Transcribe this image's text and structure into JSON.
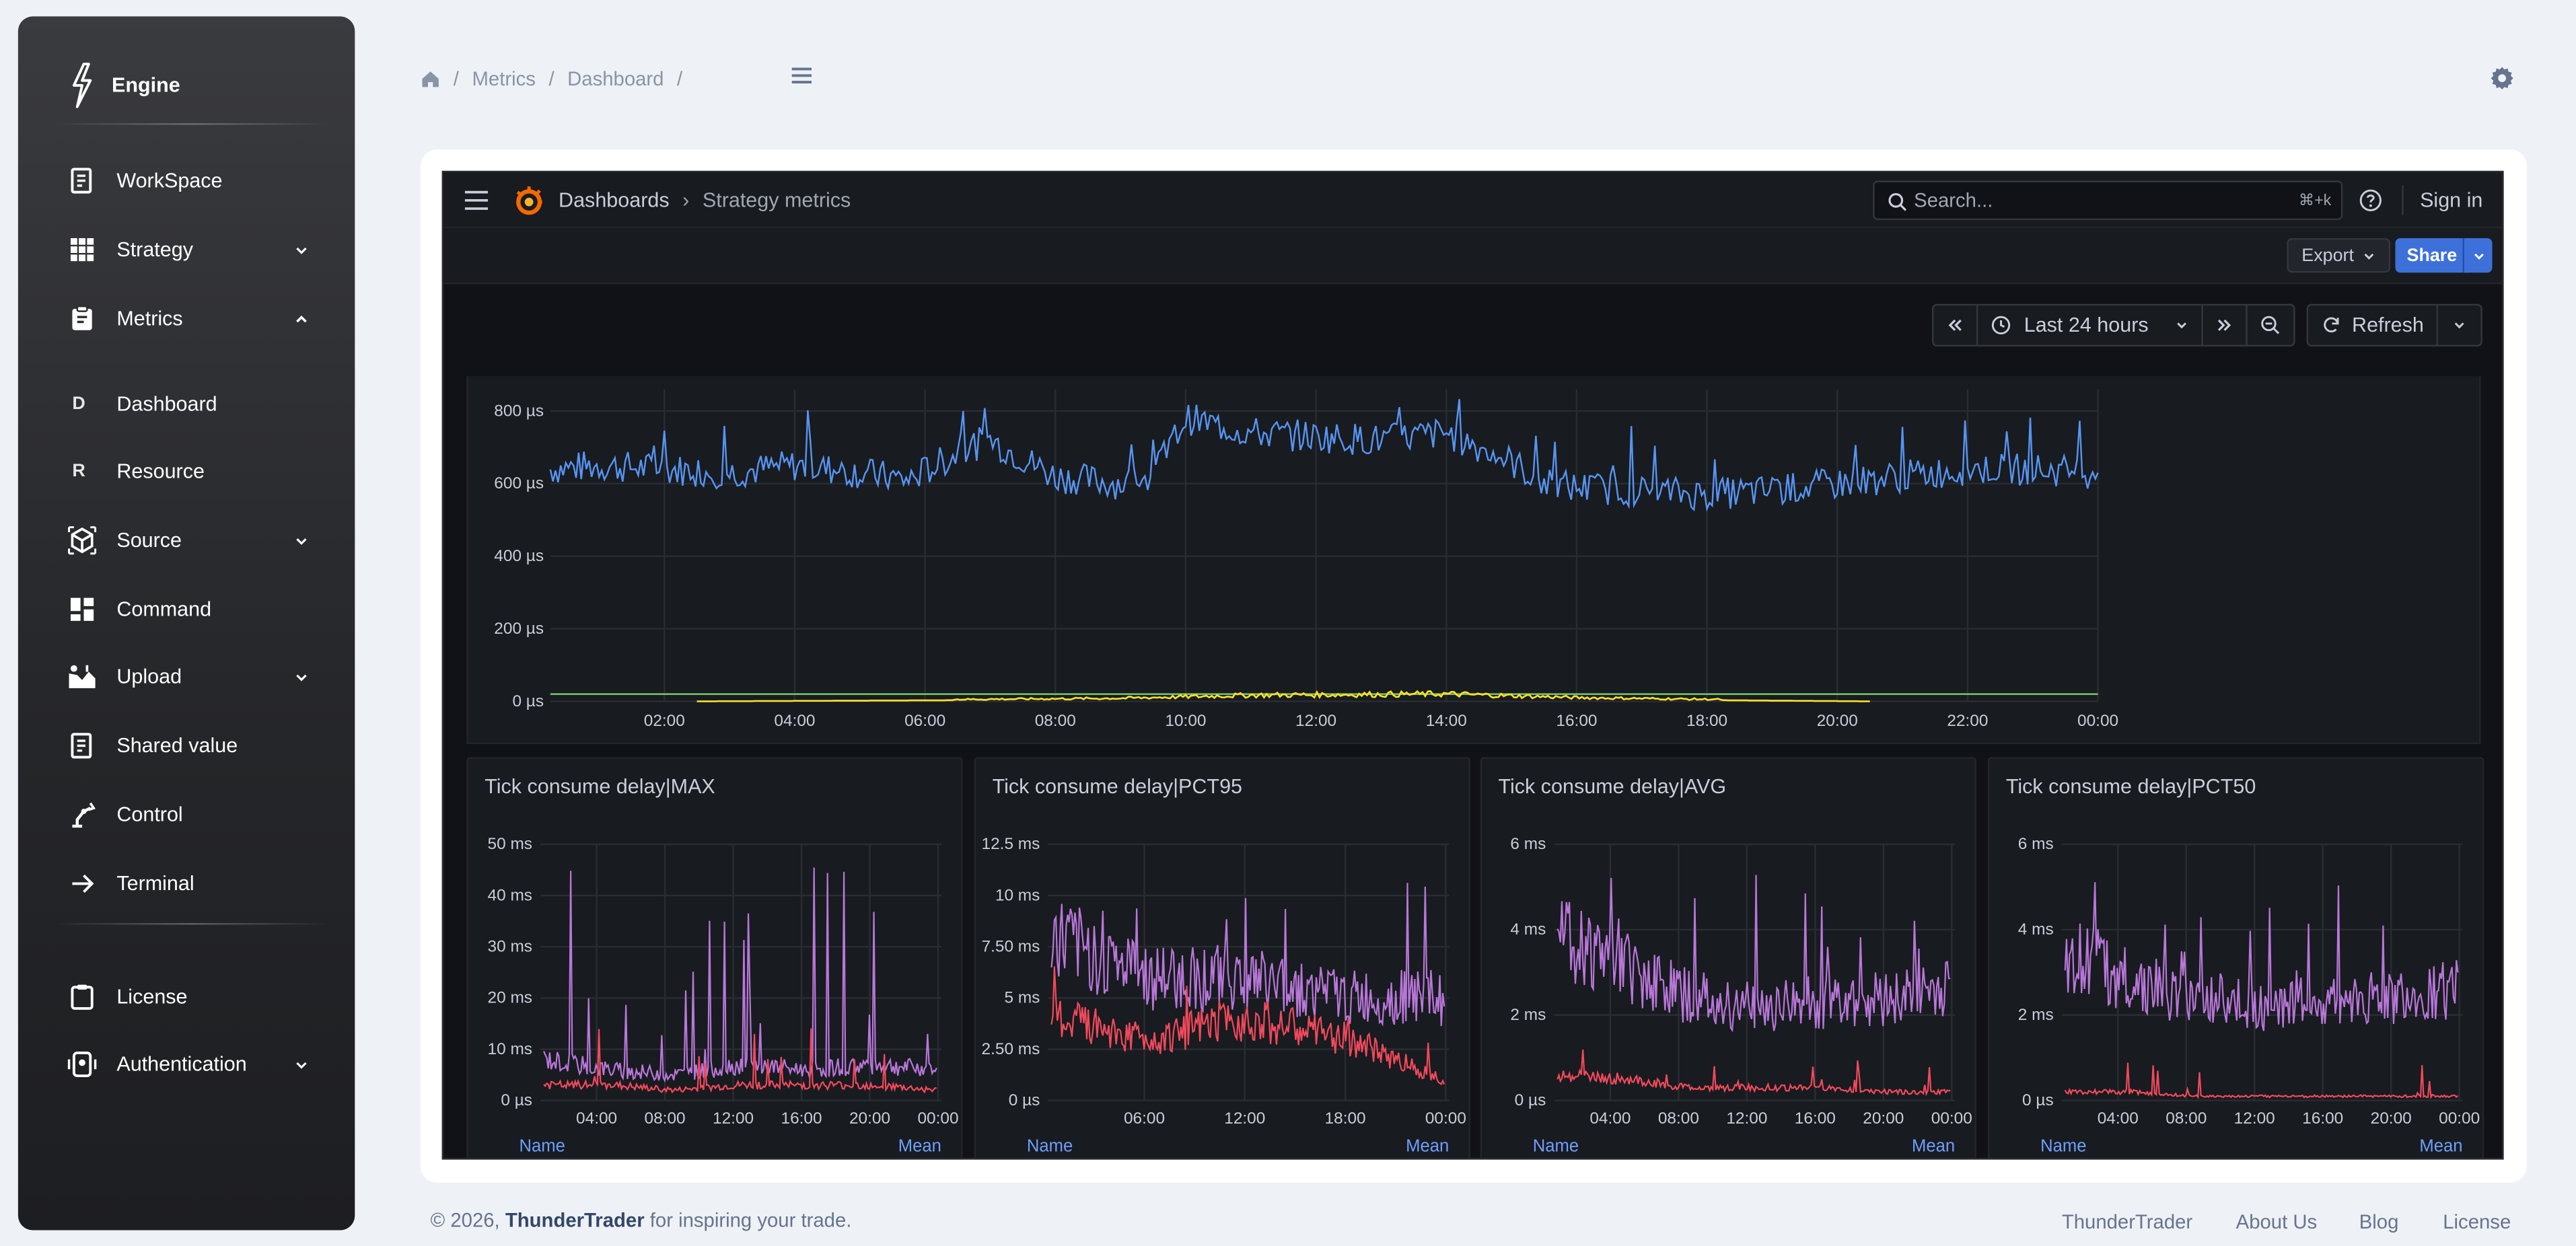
{
  "sidebar": {
    "brand": "Engine",
    "items": [
      {
        "label": "WorkSpace",
        "icon": "workspace-icon"
      },
      {
        "label": "Strategy",
        "icon": "grid-icon",
        "chevron": "down"
      },
      {
        "label": "Metrics",
        "icon": "clipboard-icon",
        "chevron": "up"
      },
      {
        "label": "Dashboard",
        "letter": "D"
      },
      {
        "label": "Resource",
        "letter": "R"
      },
      {
        "label": "Source",
        "icon": "cube-icon",
        "chevron": "down"
      },
      {
        "label": "Command",
        "icon": "dashboard-icon"
      },
      {
        "label": "Upload",
        "icon": "upload-icon",
        "chevron": "down"
      },
      {
        "label": "Shared value",
        "icon": "document-icon"
      },
      {
        "label": "Control",
        "icon": "robot-arm-icon"
      },
      {
        "label": "Terminal",
        "icon": "arrow-right-icon"
      },
      {
        "label": "License",
        "icon": "clipboard-check-icon"
      },
      {
        "label": "Authentication",
        "icon": "id-card-icon",
        "chevron": "down"
      }
    ]
  },
  "breadcrumb": {
    "items": [
      "Metrics",
      "Dashboard"
    ]
  },
  "grafana": {
    "nav_root": "Dashboards",
    "nav_current": "Strategy metrics",
    "search_placeholder": "Search...",
    "search_shortcut": "⌘+k",
    "sign_in": "Sign in",
    "export_label": "Export",
    "share_label": "Share",
    "time_range": "Last 24 hours",
    "refresh_label": "Refresh"
  },
  "chart_data": [
    {
      "type": "line",
      "title": "",
      "y_ticks": [
        "0 µs",
        "200 µs",
        "400 µs",
        "600 µs",
        "800 µs"
      ],
      "x_ticks": [
        "02:00",
        "04:00",
        "06:00",
        "08:00",
        "10:00",
        "12:00",
        "14:00",
        "16:00",
        "18:00",
        "20:00",
        "22:00",
        "00:00"
      ],
      "ylim": [
        0,
        860
      ],
      "series": [
        {
          "color": "#5794f2",
          "x": [
            "00:15",
            "01:00",
            "02:00",
            "03:00",
            "04:00",
            "05:00",
            "05:45",
            "06:40",
            "07:00",
            "08:00",
            "09:00",
            "09:30",
            "10:00",
            "10:30",
            "11:00",
            "12:00",
            "13:00",
            "14:00",
            "15:00",
            "15:30",
            "16:00",
            "17:00",
            "18:00",
            "19:00",
            "20:00",
            "21:00",
            "22:00",
            "23:00",
            "00:00"
          ],
          "values": [
            640,
            650,
            640,
            630,
            650,
            630,
            610,
            700,
            720,
            620,
            600,
            620,
            780,
            760,
            740,
            730,
            720,
            740,
            660,
            600,
            590,
            580,
            570,
            580,
            600,
            620,
            640,
            640,
            630
          ]
        },
        {
          "color": "#73bf69",
          "x": [
            "00:15",
            "02:30",
            "20:30",
            "00:00"
          ],
          "values": [
            20,
            20,
            20,
            20
          ]
        },
        {
          "color": "#fade2a",
          "x": [
            "02:30",
            "09:00",
            "11:00",
            "14:00",
            "16:00",
            "20:30"
          ],
          "values": [
            0,
            5,
            10,
            12,
            6,
            0
          ]
        }
      ]
    },
    {
      "type": "line",
      "title": "Tick consume delay|MAX",
      "y_ticks": [
        "0 µs",
        "10 ms",
        "20 ms",
        "30 ms",
        "40 ms",
        "50 ms"
      ],
      "x_ticks": [
        "04:00",
        "08:00",
        "12:00",
        "16:00",
        "20:00",
        "00:00"
      ],
      "legend": {
        "name": "Name",
        "mean": "Mean"
      },
      "series": [
        {
          "color": "#b877d9",
          "x": [
            "00:00",
            "04:00",
            "08:00",
            "12:00",
            "16:00",
            "20:00",
            "00:00"
          ],
          "values": [
            8,
            6,
            5,
            7,
            6,
            7,
            6
          ]
        },
        {
          "color": "#f2495c",
          "x": [
            "00:00",
            "04:00",
            "08:00",
            "12:00",
            "16:00",
            "20:00",
            "00:00"
          ],
          "values": [
            3,
            3,
            2,
            3,
            3,
            3,
            2
          ]
        }
      ]
    },
    {
      "type": "line",
      "title": "Tick consume delay|PCT95",
      "y_ticks": [
        "0 µs",
        "2.50 ms",
        "5 ms",
        "7.50 ms",
        "10 ms",
        "12.5 ms"
      ],
      "x_ticks": [
        "06:00",
        "12:00",
        "18:00",
        "00:00"
      ],
      "legend": {
        "name": "Name",
        "mean": "Mean"
      },
      "series": [
        {
          "color": "#b877d9",
          "x": [
            "00:00",
            "06:00",
            "12:00",
            "18:00",
            "00:00"
          ],
          "values": [
            8,
            6,
            6,
            5,
            5
          ]
        },
        {
          "color": "#f2495c",
          "x": [
            "00:00",
            "06:00",
            "12:00",
            "18:00",
            "00:00"
          ],
          "values": [
            4,
            3,
            4,
            3,
            1
          ]
        }
      ]
    },
    {
      "type": "line",
      "title": "Tick consume delay|AVG",
      "y_ticks": [
        "0 µs",
        "2 ms",
        "4 ms",
        "6 ms"
      ],
      "x_ticks": [
        "04:00",
        "08:00",
        "12:00",
        "16:00",
        "20:00",
        "00:00"
      ],
      "legend": {
        "name": "Name",
        "mean": "Mean"
      },
      "series": [
        {
          "color": "#b877d9",
          "x": [
            "00:00",
            "04:00",
            "08:00",
            "12:00",
            "16:00",
            "20:00",
            "00:00"
          ],
          "values": [
            3.8,
            3.2,
            2.4,
            2.2,
            2.3,
            2.4,
            2.6
          ]
        },
        {
          "color": "#f2495c",
          "x": [
            "00:00",
            "04:00",
            "08:00",
            "12:00",
            "16:00",
            "20:00",
            "00:00"
          ],
          "values": [
            0.6,
            0.5,
            0.3,
            0.3,
            0.3,
            0.2,
            0.2
          ]
        }
      ]
    },
    {
      "type": "line",
      "title": "Tick consume delay|PCT50",
      "y_ticks": [
        "0 µs",
        "2 ms",
        "4 ms",
        "6 ms"
      ],
      "x_ticks": [
        "04:00",
        "08:00",
        "12:00",
        "16:00",
        "20:00",
        "00:00"
      ],
      "legend": {
        "name": "Name",
        "mean": "Mean"
      },
      "series": [
        {
          "color": "#b877d9",
          "x": [
            "00:00",
            "04:00",
            "08:00",
            "12:00",
            "16:00",
            "20:00",
            "00:00"
          ],
          "values": [
            3.5,
            2.8,
            2.3,
            2.2,
            2.3,
            2.4,
            2.6
          ]
        },
        {
          "color": "#f2495c",
          "x": [
            "00:00",
            "04:00",
            "08:00",
            "12:00",
            "16:00",
            "20:00",
            "00:00"
          ],
          "values": [
            0.2,
            0.2,
            0.1,
            0.1,
            0.1,
            0.1,
            0.1
          ]
        }
      ]
    }
  ],
  "footer": {
    "copyright": "© 2026,",
    "brand": "ThunderTrader",
    "tagline": "for inspiring your trade.",
    "links": [
      "ThunderTrader",
      "About Us",
      "Blog",
      "License"
    ]
  }
}
